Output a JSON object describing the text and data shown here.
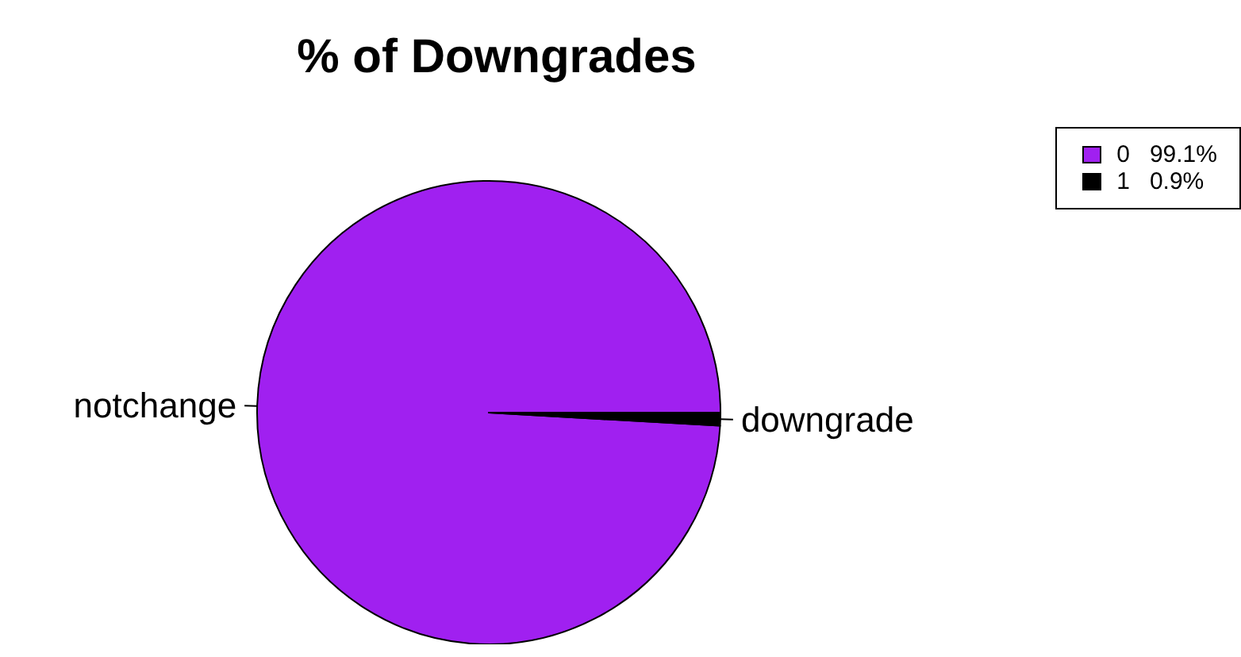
{
  "chart_data": {
    "type": "pie",
    "title": "% of Downgrades",
    "categories": [
      "notchange",
      "downgrade"
    ],
    "values": [
      99.1,
      0.9
    ],
    "colors": [
      "#a020f0",
      "#000000"
    ],
    "annotations": [
      "0   99.1%",
      "1   0.9%"
    ]
  }
}
